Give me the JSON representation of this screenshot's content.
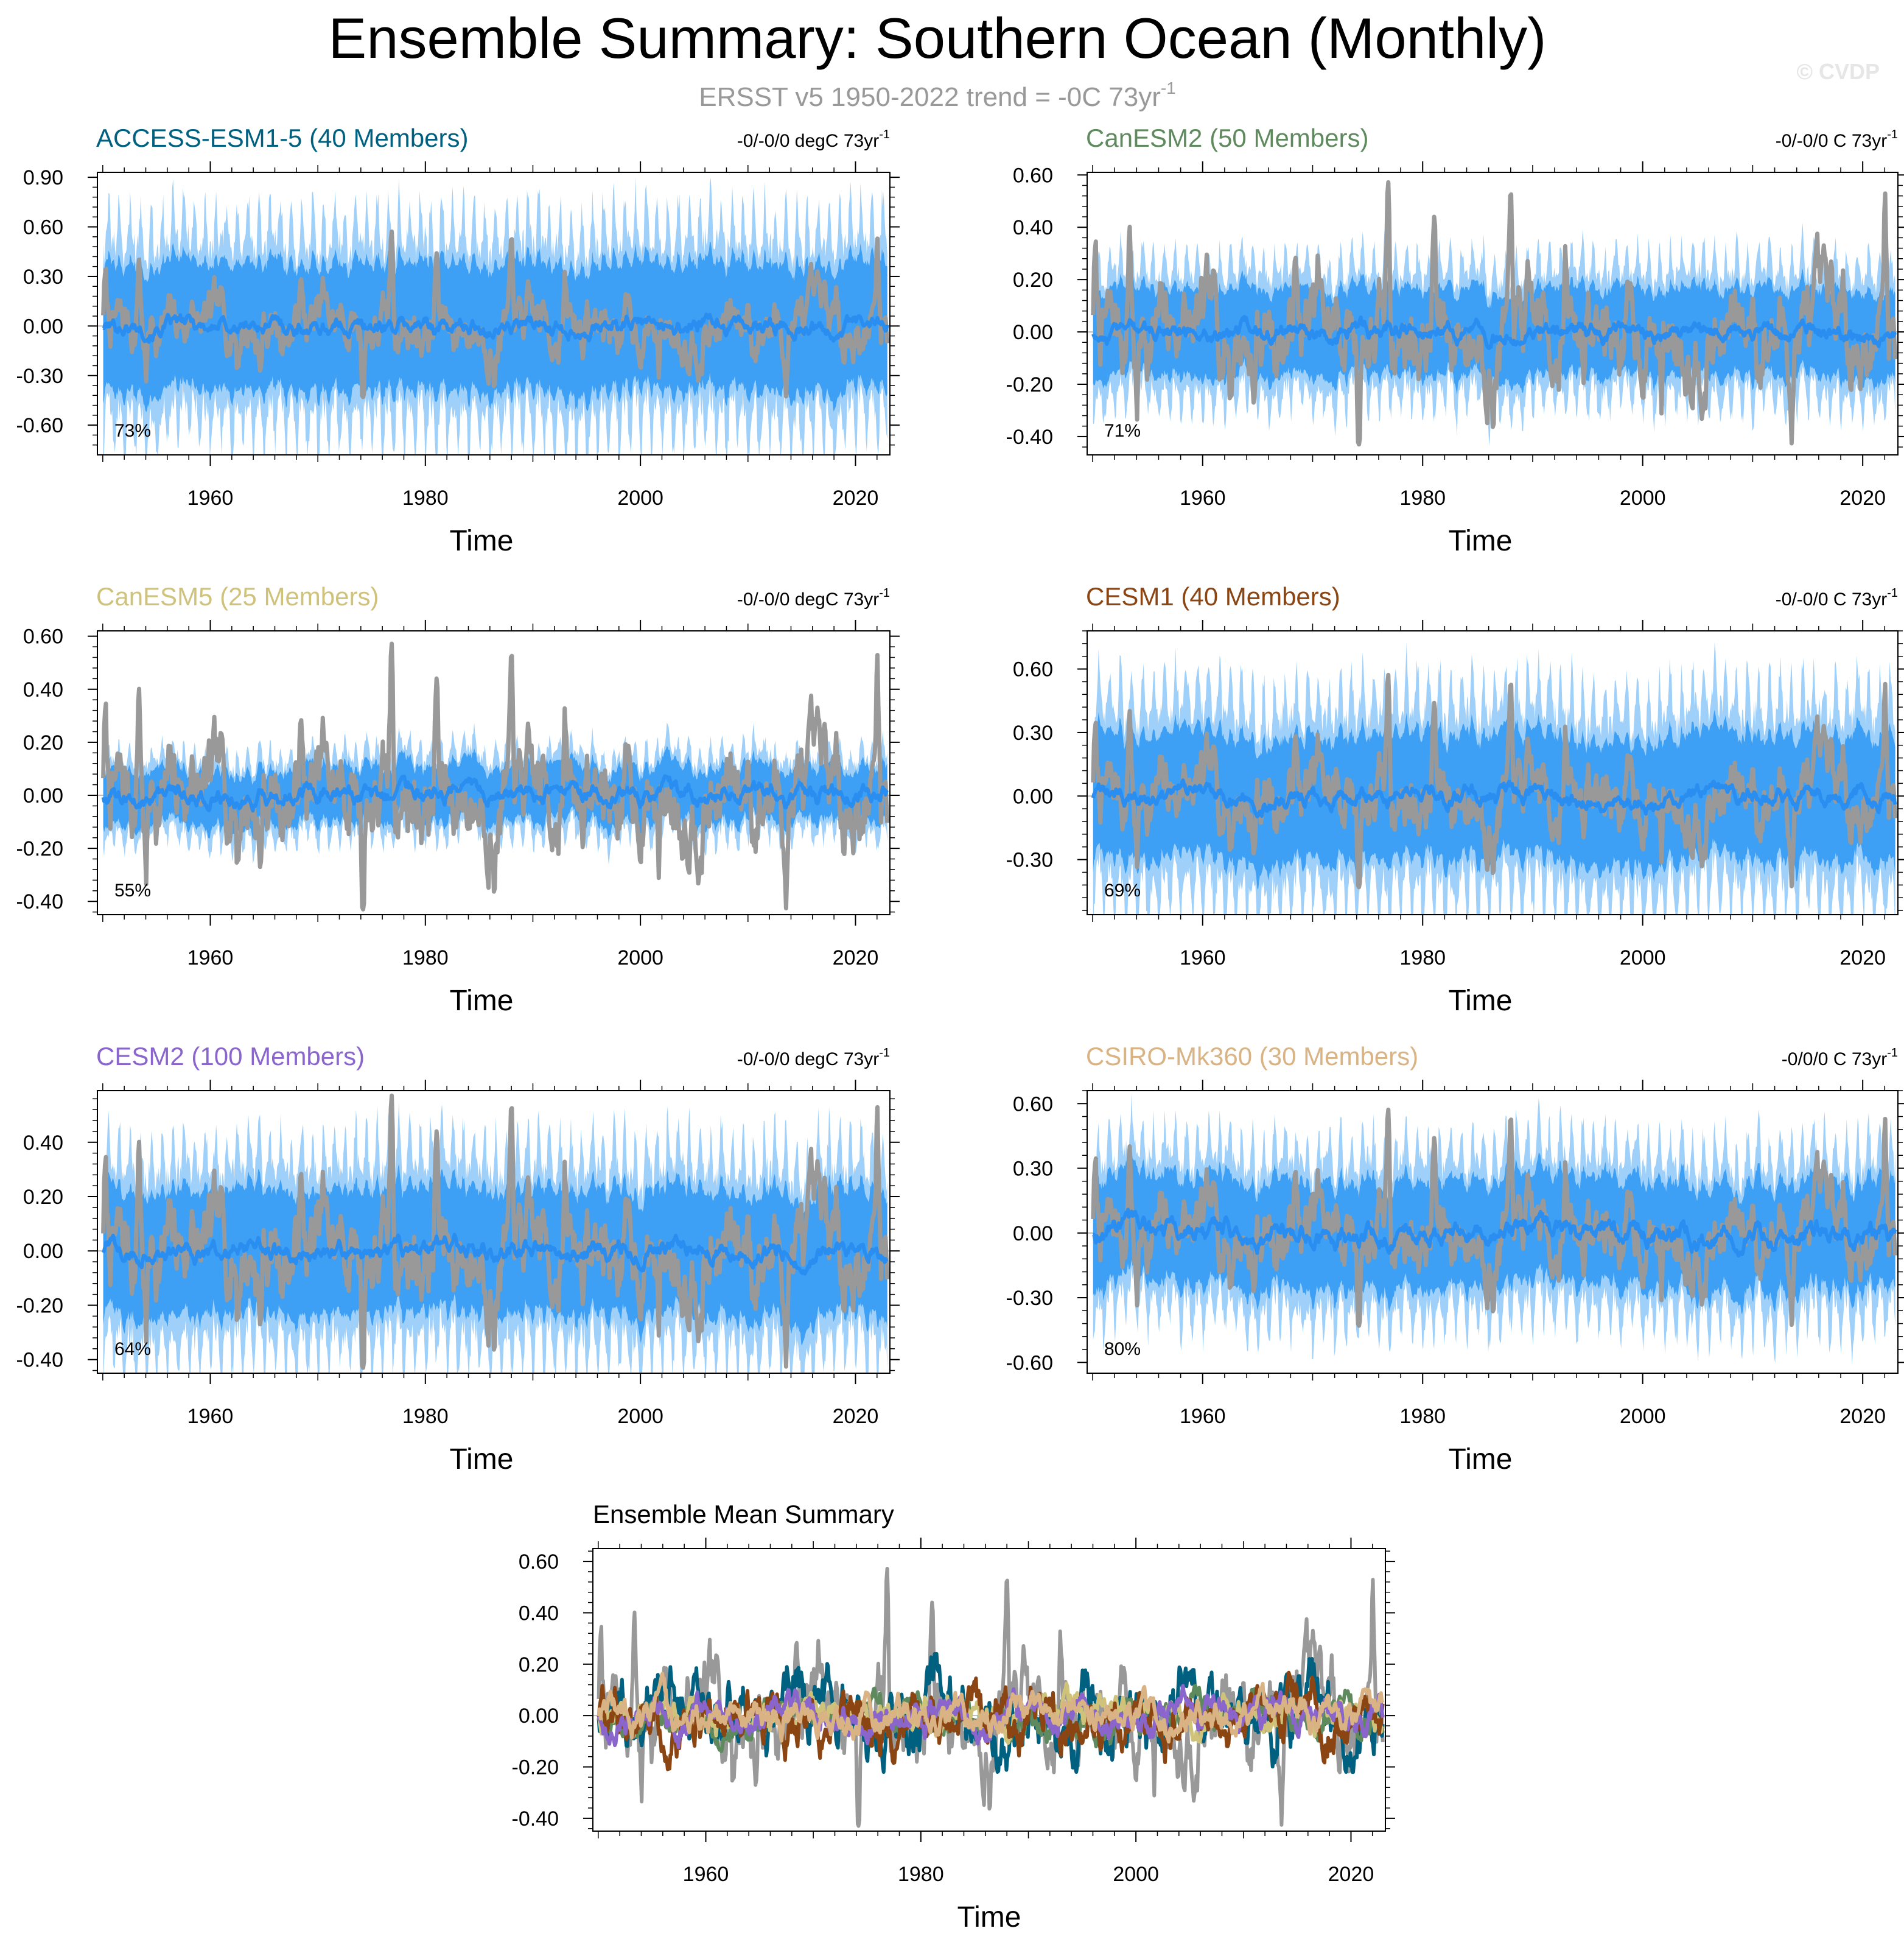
{
  "page": {
    "title": "Ensemble Summary: Southern Ocean (Monthly)",
    "subtitle": "ERSST v5 1950-2022 trend = -0C 73yr",
    "subtitle_superscript": "-1",
    "watermark": "© CVDP"
  },
  "colors": {
    "observed": "#999999",
    "ensemble_mean": "#2a8ef0",
    "spread_inner": "#3da0f5",
    "spread_outer": "#9fd0fa",
    "subtitle": "#999999",
    "watermark": "#e6e6e6"
  },
  "chart_data": [
    {
      "type": "line",
      "title": "ACCESS-ESM1-5 (40 Members)",
      "title_color": "#00607f",
      "trend_label": "-0/-0/0 degC 73yr",
      "trend_superscript": "-1",
      "percent_label": "73%",
      "xlabel": "Time",
      "xlim": [
        1949.5,
        2023.2
      ],
      "x_ticks": [
        "1960",
        "1980",
        "2000",
        "2020"
      ],
      "ylim": [
        -0.78,
        0.93
      ],
      "y_ticks": [
        "0.90",
        "0.60",
        "0.30",
        "0.00",
        "-0.30",
        "-0.60"
      ],
      "y_tick_values": [
        0.9,
        0.6,
        0.3,
        0.0,
        -0.3,
        -0.6
      ],
      "series": [
        {
          "name": "ensemble spread (outer)",
          "approx_amplitude": 0.7
        },
        {
          "name": "ensemble spread (inner)",
          "approx_amplitude": 0.42
        },
        {
          "name": "ensemble mean",
          "approx_amplitude": 0.06
        },
        {
          "name": "ERSST v5 observed",
          "approx_range": [
            -0.42,
            0.59
          ]
        }
      ]
    },
    {
      "type": "line",
      "title": "CanESM2 (50 Members)",
      "title_color": "#5e8a5e",
      "trend_label": "-0/-0/0 C 73yr",
      "trend_superscript": "-1",
      "percent_label": "71%",
      "xlabel": "Time",
      "xlim": [
        1949.5,
        2023.2
      ],
      "x_ticks": [
        "1960",
        "1980",
        "2000",
        "2020"
      ],
      "ylim": [
        -0.47,
        0.61
      ],
      "y_ticks": [
        "0.60",
        "0.40",
        "0.20",
        "0.00",
        "-0.20",
        "-0.40"
      ],
      "y_tick_values": [
        0.6,
        0.4,
        0.2,
        0.0,
        -0.2,
        -0.4
      ],
      "series": [
        {
          "name": "ensemble spread (outer)",
          "approx_amplitude": 0.3
        },
        {
          "name": "ensemble spread (inner)",
          "approx_amplitude": 0.18
        },
        {
          "name": "ensemble mean",
          "approx_amplitude": 0.04
        },
        {
          "name": "ERSST v5 observed",
          "approx_range": [
            -0.42,
            0.59
          ]
        }
      ]
    },
    {
      "type": "line",
      "title": "CanESM5 (25 Members)",
      "title_color": "#cfc27a",
      "trend_label": "-0/-0/0 degC 73yr",
      "trend_superscript": "-1",
      "percent_label": "55%",
      "xlabel": "Time",
      "xlim": [
        1949.5,
        2023.2
      ],
      "x_ticks": [
        "1960",
        "1980",
        "2000",
        "2020"
      ],
      "ylim": [
        -0.45,
        0.62
      ],
      "y_ticks": [
        "0.60",
        "0.40",
        "0.20",
        "0.00",
        "-0.20",
        "-0.40"
      ],
      "y_tick_values": [
        0.6,
        0.4,
        0.2,
        0.0,
        -0.2,
        -0.4
      ],
      "series": [
        {
          "name": "ensemble spread (outer)",
          "approx_amplitude": 0.18
        },
        {
          "name": "ensemble spread (inner)",
          "approx_amplitude": 0.11
        },
        {
          "name": "ensemble mean",
          "approx_amplitude": 0.04
        },
        {
          "name": "ERSST v5 observed",
          "approx_range": [
            -0.42,
            0.59
          ]
        }
      ]
    },
    {
      "type": "line",
      "title": "CESM1 (40 Members)",
      "title_color": "#8b4513",
      "trend_label": "-0/-0/0 C 73yr",
      "trend_superscript": "-1",
      "percent_label": "69%",
      "xlabel": "Time",
      "xlim": [
        1949.5,
        2023.2
      ],
      "x_ticks": [
        "1960",
        "1980",
        "2000",
        "2020"
      ],
      "ylim": [
        -0.56,
        0.78
      ],
      "y_ticks": [
        "0.60",
        "0.30",
        "0.00",
        "-0.30"
      ],
      "y_tick_values": [
        0.6,
        0.3,
        0.0,
        -0.3
      ],
      "series": [
        {
          "name": "ensemble spread (outer)",
          "approx_amplitude": 0.55
        },
        {
          "name": "ensemble spread (inner)",
          "approx_amplitude": 0.32
        },
        {
          "name": "ensemble mean",
          "approx_amplitude": 0.05
        },
        {
          "name": "ERSST v5 observed",
          "approx_range": [
            -0.42,
            0.59
          ]
        }
      ]
    },
    {
      "type": "line",
      "title": "CESM2 (100 Members)",
      "title_color": "#8a66cc",
      "trend_label": "-0/-0/0 degC 73yr",
      "trend_superscript": "-1",
      "percent_label": "64%",
      "xlabel": "Time",
      "xlim": [
        1949.5,
        2023.2
      ],
      "x_ticks": [
        "1960",
        "1980",
        "2000",
        "2020"
      ],
      "ylim": [
        -0.45,
        0.59
      ],
      "y_ticks": [
        "0.40",
        "0.20",
        "0.00",
        "-0.20",
        "-0.40"
      ],
      "y_tick_values": [
        0.4,
        0.2,
        0.0,
        -0.2,
        -0.4
      ],
      "series": [
        {
          "name": "ensemble spread (outer)",
          "approx_amplitude": 0.42
        },
        {
          "name": "ensemble spread (inner)",
          "approx_amplitude": 0.25
        },
        {
          "name": "ensemble mean",
          "approx_amplitude": 0.04
        },
        {
          "name": "ERSST v5 observed",
          "approx_range": [
            -0.42,
            0.59
          ]
        }
      ]
    },
    {
      "type": "line",
      "title": "CSIRO-Mk360 (30 Members)",
      "title_color": "#d9b384",
      "trend_label": "-0/0/0 C 73yr",
      "trend_superscript": "-1",
      "percent_label": "80%",
      "xlabel": "Time",
      "xlim": [
        1949.5,
        2023.2
      ],
      "x_ticks": [
        "1960",
        "1980",
        "2000",
        "2020"
      ],
      "ylim": [
        -0.65,
        0.66
      ],
      "y_ticks": [
        "0.60",
        "0.30",
        "0.00",
        "-0.30",
        "-0.60"
      ],
      "y_tick_values": [
        0.6,
        0.3,
        0.0,
        -0.3,
        -0.6
      ],
      "series": [
        {
          "name": "ensemble spread (outer)",
          "approx_amplitude": 0.45
        },
        {
          "name": "ensemble spread (inner)",
          "approx_amplitude": 0.27
        },
        {
          "name": "ensemble mean",
          "approx_amplitude": 0.06
        },
        {
          "name": "ERSST v5 observed",
          "approx_range": [
            -0.42,
            0.59
          ]
        }
      ]
    },
    {
      "type": "line",
      "title": "Ensemble Mean Summary",
      "title_color": "#000000",
      "xlabel": "Time",
      "xlim": [
        1949.5,
        2023.2
      ],
      "x_ticks": [
        "1960",
        "1980",
        "2000",
        "2020"
      ],
      "ylim": [
        -0.45,
        0.65
      ],
      "y_ticks": [
        "0.60",
        "0.40",
        "0.20",
        "0.00",
        "-0.20",
        "-0.40"
      ],
      "y_tick_values": [
        0.6,
        0.4,
        0.2,
        0.0,
        -0.2,
        -0.4
      ],
      "series": [
        {
          "name": "ERSST v5 observed",
          "color": "#999999"
        },
        {
          "name": "ACCESS-ESM1-5",
          "color": "#00607f"
        },
        {
          "name": "CanESM2",
          "color": "#5e8a5e"
        },
        {
          "name": "CanESM5",
          "color": "#cfc27a"
        },
        {
          "name": "CESM1",
          "color": "#8b4513"
        },
        {
          "name": "CESM2",
          "color": "#8a66cc"
        },
        {
          "name": "CSIRO-Mk360",
          "color": "#d9b384"
        }
      ]
    }
  ]
}
